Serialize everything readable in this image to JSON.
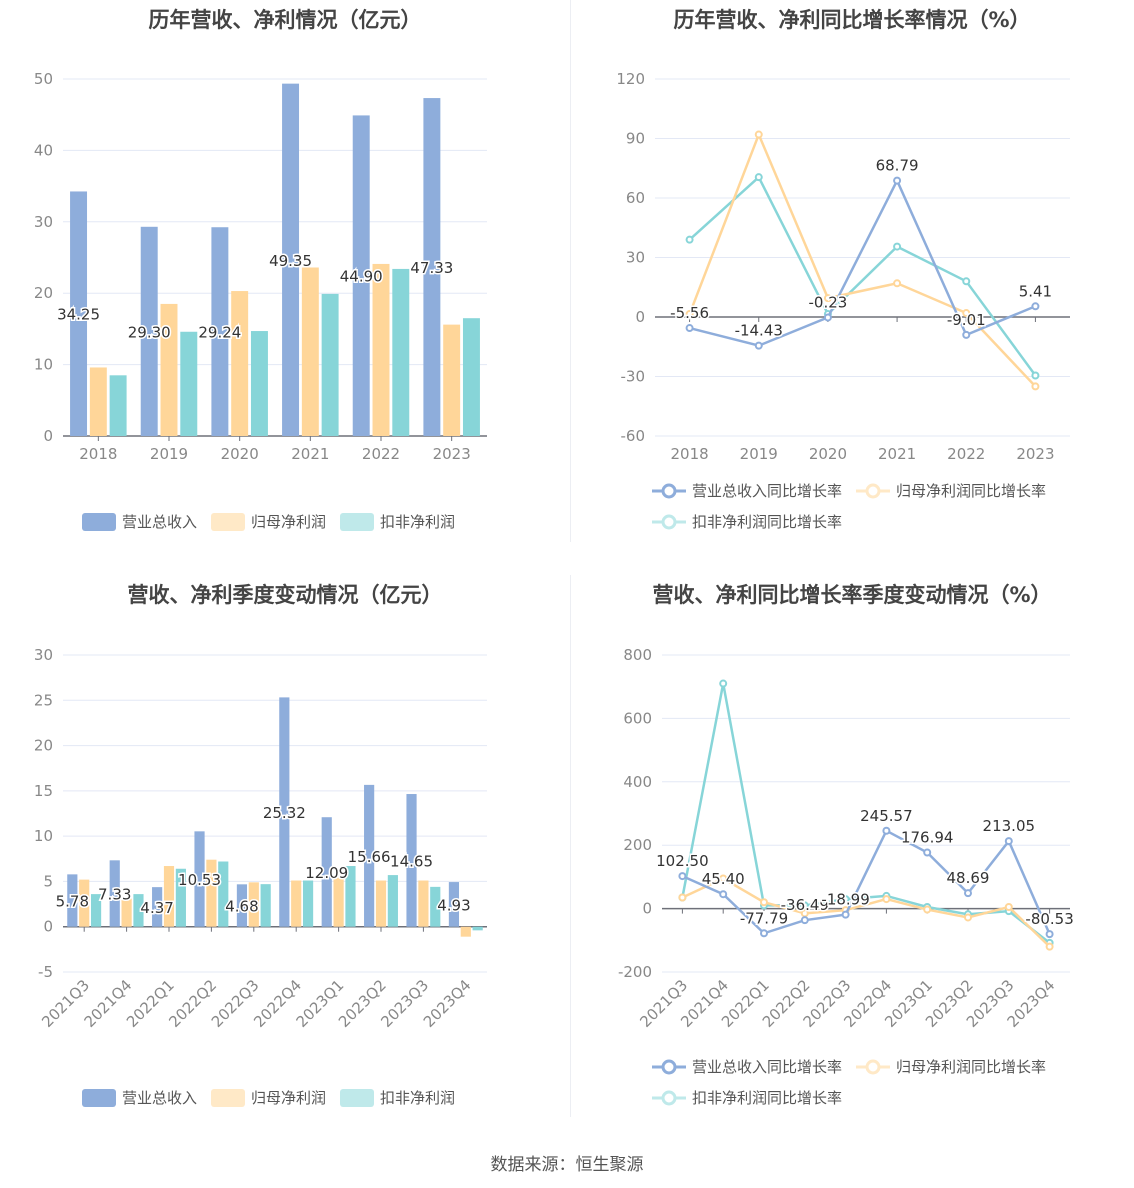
{
  "colors": {
    "revenue": "#8eaddb",
    "net_profit": "#ffd699",
    "deducted": "#87d5d8",
    "revenue_legend": "#8eaddb",
    "net_legend": "#ffe9c7",
    "deducted_legend": "#bfe9ea",
    "axis_text": "#888",
    "grid": "#e3e8f5"
  },
  "source": "数据来源：恒生聚源",
  "chart_data": [
    {
      "type": "bar",
      "title": "历年营收、净利情况（亿元）",
      "categories": [
        "2018",
        "2019",
        "2020",
        "2021",
        "2022",
        "2023"
      ],
      "ylim": [
        0,
        50
      ],
      "yticks": [
        0,
        10,
        20,
        30,
        40,
        50
      ],
      "grid": true,
      "legend_position": "bottom",
      "series": [
        {
          "name": "营业总收入",
          "values": [
            34.25,
            29.3,
            29.24,
            49.35,
            44.9,
            47.33
          ],
          "labels": [
            "34.25",
            "29.30",
            "29.24",
            "49.35",
            "44.90",
            "47.33"
          ]
        },
        {
          "name": "归母净利润",
          "values": [
            9.6,
            18.5,
            20.3,
            23.6,
            24.1,
            15.6
          ]
        },
        {
          "name": "扣非净利润",
          "values": [
            8.5,
            14.6,
            14.7,
            19.9,
            23.4,
            16.5
          ]
        }
      ]
    },
    {
      "type": "line",
      "title": "历年营收、净利同比增长率情况（%）",
      "categories": [
        "2018",
        "2019",
        "2020",
        "2021",
        "2022",
        "2023"
      ],
      "ylim": [
        -60,
        120
      ],
      "yticks": [
        -60,
        -30,
        0,
        30,
        60,
        90,
        120
      ],
      "grid": true,
      "legend_position": "bottom",
      "series": [
        {
          "name": "营业总收入同比增长率",
          "values": [
            -5.56,
            -14.43,
            -0.23,
            68.79,
            -9.01,
            5.41
          ],
          "labels": [
            "-5.56",
            "-14.43",
            "-0.23",
            "68.79",
            "-9.01",
            "5.41"
          ]
        },
        {
          "name": "归母净利润同比增长率",
          "values": [
            1.5,
            92,
            9.5,
            17,
            2,
            -35
          ]
        },
        {
          "name": "扣非净利润同比增长率",
          "values": [
            39,
            70.5,
            1.5,
            35.5,
            18,
            -29.5
          ]
        }
      ]
    },
    {
      "type": "bar",
      "title": "营收、净利季度变动情况（亿元）",
      "categories": [
        "2021Q3",
        "2021Q4",
        "2022Q1",
        "2022Q2",
        "2022Q3",
        "2022Q4",
        "2023Q1",
        "2023Q2",
        "2023Q3",
        "2023Q4"
      ],
      "ylim": [
        -5,
        30
      ],
      "yticks": [
        -5,
        0,
        5,
        10,
        15,
        20,
        25,
        30
      ],
      "grid": true,
      "legend_position": "bottom",
      "series": [
        {
          "name": "营业总收入",
          "values": [
            5.78,
            7.33,
            4.37,
            10.53,
            4.68,
            25.32,
            12.09,
            15.66,
            14.65,
            4.93
          ],
          "labels": [
            "5.78",
            "7.33",
            "4.37",
            "10.53",
            "4.68",
            "25.32",
            "12.09",
            "15.66",
            "14.65",
            "4.93"
          ]
        },
        {
          "name": "归母净利润",
          "values": [
            5.2,
            3.1,
            6.7,
            7.4,
            4.9,
            5.1,
            5.4,
            5.1,
            5.1,
            -1.1
          ]
        },
        {
          "name": "扣非净利润",
          "values": [
            3.6,
            3.6,
            6.4,
            7.2,
            4.7,
            5.1,
            6.7,
            5.7,
            4.4,
            -0.4
          ]
        }
      ]
    },
    {
      "type": "line",
      "title": "营收、净利同比增长率季度变动情况（%）",
      "categories": [
        "2021Q3",
        "2021Q4",
        "2022Q1",
        "2022Q2",
        "2022Q3",
        "2022Q4",
        "2023Q1",
        "2023Q2",
        "2023Q3",
        "2023Q4"
      ],
      "ylim": [
        -200,
        800
      ],
      "yticks": [
        -200,
        0,
        200,
        400,
        600,
        800
      ],
      "grid": true,
      "legend_position": "bottom",
      "series": [
        {
          "name": "营业总收入同比增长率",
          "values": [
            102.5,
            45.4,
            -77.79,
            -36.49,
            -18.99,
            245.57,
            176.94,
            48.69,
            213.05,
            -80.53
          ],
          "labels": [
            "102.50",
            "45.40",
            "-77.79",
            "-36.49",
            "-18.99",
            "245.57",
            "176.94",
            "48.69",
            "213.05",
            "-80.53"
          ]
        },
        {
          "name": "归母净利润同比增长率",
          "values": [
            35,
            95,
            20,
            -15,
            -5,
            30,
            -3,
            -28,
            5,
            -120
          ]
        },
        {
          "name": "扣非净利润同比增长率",
          "values": [
            35,
            710,
            10,
            10,
            30,
            40,
            5,
            -18,
            -8,
            -108
          ]
        }
      ]
    }
  ]
}
